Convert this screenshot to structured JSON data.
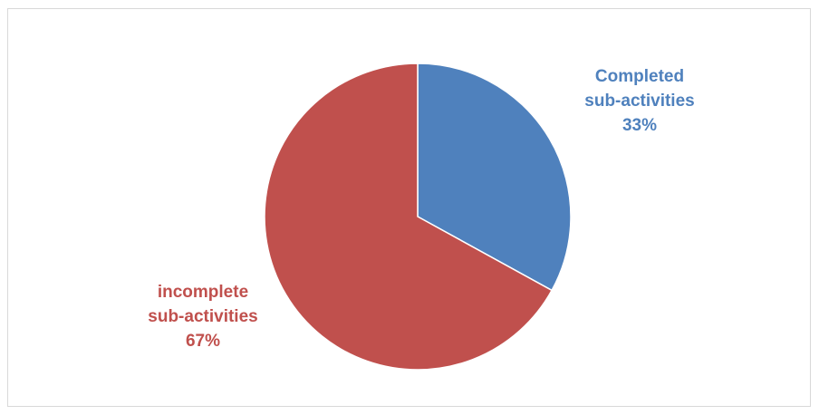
{
  "chart_data": {
    "type": "pie",
    "title": "",
    "slices": [
      {
        "name": "Completed sub-activities",
        "label_lines": [
          "Completed",
          "sub-activities",
          "33%"
        ],
        "value": 33,
        "color": "#4f81bd",
        "label_color": "#4f81bd"
      },
      {
        "name": "incomplete sub-activities",
        "label_lines": [
          "incomplete",
          "sub-activities",
          "67%"
        ],
        "value": 67,
        "color": "#c0504d",
        "label_color": "#c0504d"
      }
    ],
    "start_angle": "12 o'clock",
    "direction": "clockwise",
    "legend": "none",
    "data_labels": "outside"
  }
}
